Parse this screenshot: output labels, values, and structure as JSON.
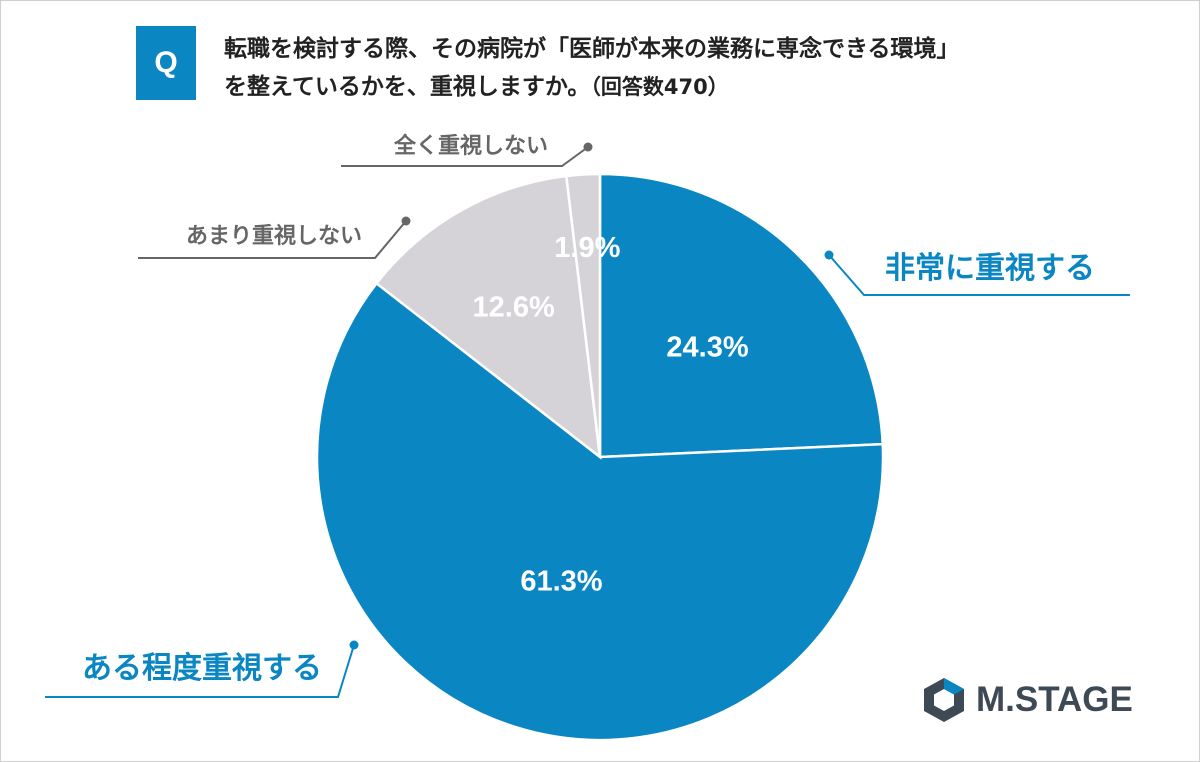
{
  "question": {
    "badge": "Q",
    "line1": "転職を検討する際、その病院が「医師が本来の業務に専念できる環境」",
    "line2": "を整えているかを、重視しますか。",
    "count": "（回答数470）"
  },
  "chart_data": {
    "type": "pie",
    "start_angle_deg": 0,
    "direction": "clockwise",
    "slices": [
      {
        "label": "非常に重視する",
        "value": 24.3,
        "value_label": "24.3%",
        "color": "#0a86c3"
      },
      {
        "label": "ある程度重視する",
        "value": 61.3,
        "value_label": "61.3%",
        "color": "#0a86c3"
      },
      {
        "label": "あまり重視しない",
        "value": 12.6,
        "value_label": "12.6%",
        "color": "#d5d3d8"
      },
      {
        "label": "全く重視しない",
        "value": 1.9,
        "value_label": "1.9%",
        "color": "#d5d3d8"
      }
    ],
    "label_colors": {
      "strong": "#0a86c3",
      "weak": "#666666"
    }
  },
  "brand": {
    "name": "M.STAGE",
    "color": "#3d4a56",
    "icon": "hexagon-logo-icon"
  }
}
